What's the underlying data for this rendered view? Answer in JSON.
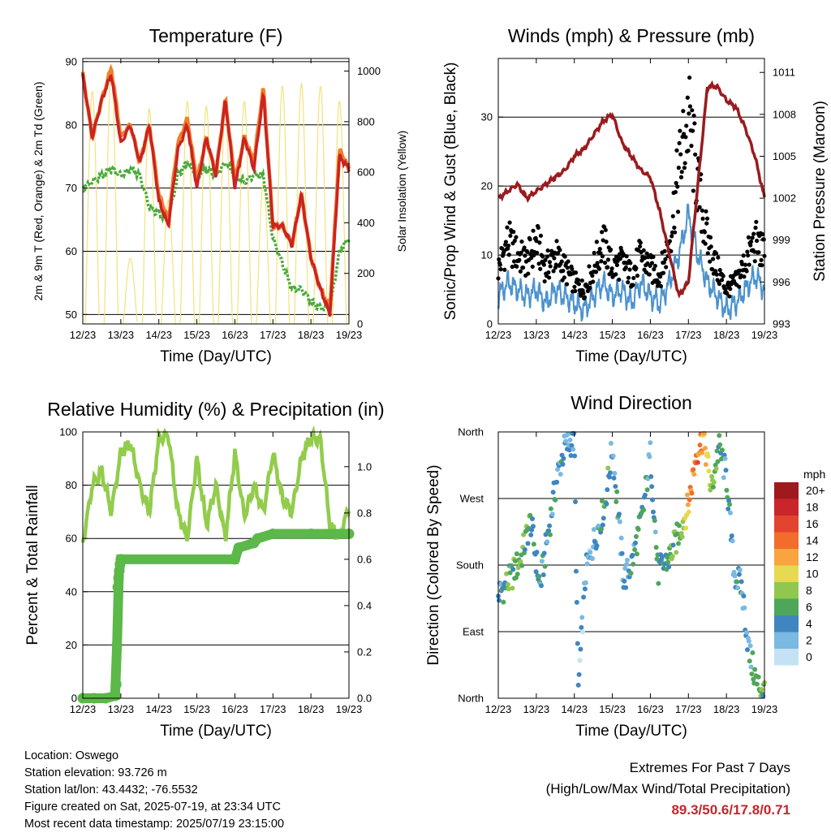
{
  "colors": {
    "temp2m": "#cc2222",
    "temp9m": "#f07f2a",
    "dewpoint": "#4aaa3c",
    "solar": "#f3e27a",
    "windSpeed": "#4b92cf",
    "gust": "#000000",
    "pressure": "#9a1b1e",
    "rh": "#92cc4c",
    "precip": "#5cb848",
    "extremes": "#c0272d"
  },
  "x_ticks": [
    "12/23",
    "13/23",
    "14/23",
    "15/23",
    "16/23",
    "17/23",
    "18/23",
    "19/23"
  ],
  "x_label": "Time (Day/UTC)",
  "speed_legend": {
    "title": "mph",
    "labels": [
      "20+",
      "18",
      "16",
      "14",
      "12",
      "10",
      "8",
      "6",
      "4",
      "2",
      "0"
    ],
    "colors": [
      "#9e1a1e",
      "#c9252b",
      "#e2452f",
      "#f26c2c",
      "#f9a43f",
      "#e5da52",
      "#8fc74f",
      "#4ea65a",
      "#3f86c0",
      "#7ab9e1",
      "#c3e3f5"
    ]
  },
  "chart_data": [
    {
      "type": "line",
      "title": "Temperature (F)",
      "xlabel": "Time (Day/UTC)",
      "ylabel": "2m & 9m T (Red, Orange) & 2m Td (Green)",
      "ylabel_right": "Solar Insolation (Yellow)",
      "ylim": [
        48.5,
        90.5
      ],
      "ylim_right": [
        0,
        1050
      ],
      "yticks": [
        50,
        60,
        70,
        80,
        90
      ],
      "yticks_right": [
        0,
        200,
        400,
        600,
        800,
        1000
      ],
      "grid": true,
      "x_days": [
        0,
        0.25,
        0.5,
        0.75,
        1,
        1.25,
        1.5,
        1.75,
        2,
        2.25,
        2.5,
        2.75,
        3,
        3.25,
        3.5,
        3.75,
        4,
        4.25,
        4.5,
        4.75,
        5,
        5.25,
        5.5,
        5.75,
        6,
        6.25,
        6.5,
        6.75,
        7
      ],
      "series": [
        {
          "name": "2m T",
          "values": [
            88,
            78,
            84,
            88,
            77,
            80,
            74,
            80,
            68,
            64,
            76,
            80,
            70,
            78,
            72,
            84,
            70,
            78,
            73,
            85,
            64,
            64,
            61,
            69,
            59,
            54,
            50,
            75,
            73
          ]
        },
        {
          "name": "9m T",
          "values": [
            88,
            78,
            84,
            89,
            78,
            80,
            74,
            80,
            69,
            65,
            77,
            81,
            71,
            78,
            72,
            84,
            71,
            78,
            74,
            86,
            64,
            64,
            61,
            69,
            59,
            54,
            51,
            76,
            73
          ]
        },
        {
          "name": "2m Td",
          "values": [
            70,
            71,
            72,
            73,
            72,
            73,
            72,
            67,
            66,
            65,
            72,
            74,
            72,
            73,
            72,
            74,
            72,
            71,
            72,
            72,
            62,
            58,
            54,
            54,
            52,
            51,
            51,
            60,
            62
          ]
        }
      ],
      "solar_days": [
        0.25,
        0.75,
        1.25,
        1.75,
        2.25,
        2.75,
        3.25,
        3.75,
        4.25,
        4.75,
        5.25,
        5.75,
        6.25,
        6.75
      ],
      "solar_peaks": [
        920,
        1000,
        260,
        850,
        490,
        880,
        860,
        850,
        880,
        560,
        940,
        950,
        940,
        880
      ]
    },
    {
      "type": "scatter",
      "title": "Winds (mph) & Pressure (mb)",
      "xlabel": "Time (Day/UTC)",
      "ylabel": "Sonic/Prop Wind & Gust (Blue, Black)",
      "ylabel_right": "Station Pressure (Maroon)",
      "ylim": [
        0,
        38.5
      ],
      "ylim_right": [
        993,
        1012
      ],
      "yticks": [
        0,
        10,
        20,
        30
      ],
      "yticks_right": [
        993,
        996,
        999,
        1002,
        1005,
        1008,
        1011
      ],
      "grid": true,
      "x_days": [
        0,
        0.25,
        0.5,
        0.75,
        1,
        1.25,
        1.5,
        1.75,
        2,
        2.25,
        2.5,
        2.75,
        3,
        3.25,
        3.5,
        3.75,
        4,
        4.25,
        4.5,
        4.75,
        5,
        5.25,
        5.5,
        5.75,
        6,
        6.25,
        6.5,
        6.75,
        7
      ],
      "series": [
        {
          "name": "Wind",
          "values": [
            4,
            6,
            5,
            4,
            5,
            3,
            5,
            4,
            3,
            2,
            4,
            6,
            4,
            5,
            3,
            6,
            4,
            3,
            6,
            10,
            16,
            10,
            6,
            4,
            2,
            3,
            5,
            7,
            5
          ]
        },
        {
          "name": "Gust",
          "values": [
            8,
            12,
            10,
            9,
            12,
            8,
            10,
            8,
            6,
            5,
            8,
            12,
            8,
            9,
            7,
            10,
            8,
            7,
            12,
            22,
            30,
            20,
            12,
            8,
            5,
            6,
            9,
            12,
            10
          ]
        },
        {
          "name": "Pressure",
          "values": [
            1002,
            1002.5,
            1003,
            1002,
            1002.5,
            1003,
            1003.5,
            1004,
            1005,
            1005.5,
            1006.5,
            1007.5,
            1008,
            1006,
            1005,
            1004,
            1003.5,
            1001,
            998,
            995,
            996,
            1003,
            1010,
            1010,
            1009,
            1008.5,
            1007,
            1005,
            1002
          ]
        }
      ]
    },
    {
      "type": "line",
      "title": "Relative Humidity (%) & Precipitation (in)",
      "xlabel": "Time (Day/UTC)",
      "ylabel": "Percent & Total Rainfall",
      "ylim": [
        0,
        100
      ],
      "ylim_right": [
        0,
        1.15
      ],
      "yticks": [
        0,
        20,
        40,
        60,
        80,
        100
      ],
      "yticks_right": [
        0.0,
        0.2,
        0.4,
        0.6,
        0.8,
        1.0
      ],
      "grid": true,
      "x_days": [
        0,
        0.25,
        0.5,
        0.75,
        1,
        1.25,
        1.5,
        1.75,
        2,
        2.25,
        2.5,
        2.75,
        3,
        3.25,
        3.5,
        3.75,
        4,
        4.25,
        4.5,
        4.75,
        5,
        5.25,
        5.5,
        5.75,
        6,
        6.25,
        6.5,
        6.75,
        7
      ],
      "series": [
        {
          "name": "RH",
          "values": [
            58,
            80,
            85,
            70,
            92,
            96,
            80,
            70,
            97,
            99,
            70,
            60,
            90,
            65,
            80,
            60,
            92,
            68,
            80,
            70,
            92,
            75,
            70,
            90,
            98,
            97,
            65,
            60,
            72
          ]
        },
        {
          "name": "Precip",
          "x_days": [
            0,
            0.3,
            0.6,
            0.85,
            0.88,
            0.9,
            0.92,
            0.94,
            0.96,
            0.98,
            1.0,
            4.0,
            4.1,
            4.5,
            4.6,
            5.0,
            6.0,
            7.0
          ],
          "values": [
            0,
            0,
            0,
            0.01,
            0.06,
            0.23,
            0.48,
            0.52,
            0.55,
            0.58,
            0.6,
            0.6,
            0.65,
            0.67,
            0.69,
            0.71,
            0.71,
            0.71
          ]
        }
      ]
    },
    {
      "type": "scatter",
      "title": "Wind Direction",
      "xlabel": "Time (Day/UTC)",
      "ylabel": "Direction (Colored By Speed)",
      "yticks": [
        "North",
        "East",
        "South",
        "West",
        "North"
      ],
      "ylim": [
        0,
        360
      ],
      "grid": true,
      "x_days": [
        0,
        0.3,
        0.6,
        0.85,
        1.1,
        1.3,
        1.55,
        1.75,
        2.0,
        2.1,
        2.3,
        2.5,
        2.8,
        3.0,
        3.3,
        3.5,
        3.8,
        4.0,
        4.2,
        4.5,
        4.8,
        5.0,
        5.2,
        5.4,
        5.6,
        5.8,
        6.0,
        6.2,
        6.4,
        6.6,
        6.8,
        7.0
      ],
      "series": [
        {
          "name": "Direction",
          "values": [
            140,
            160,
            190,
            240,
            150,
            220,
            300,
            340,
            350,
            10,
            170,
            210,
            260,
            340,
            160,
            180,
            250,
            330,
            170,
            190,
            230,
            260,
            330,
            355,
            280,
            340,
            300,
            170,
            150,
            60,
            20,
            10
          ]
        },
        {
          "name": "Speed",
          "values": [
            4,
            6,
            7,
            5,
            4,
            5,
            4,
            3,
            3,
            3,
            2,
            3,
            6,
            4,
            3,
            4,
            5,
            4,
            4,
            6,
            8,
            12,
            15,
            12,
            8,
            5,
            4,
            3,
            4,
            3,
            7,
            6
          ]
        }
      ]
    }
  ],
  "footer": {
    "location": "Location: Oswego",
    "elevation": "Station elevation: 93.726 m",
    "latlon": "Station lat/lon: 43.4432; -76.5532",
    "created": "Figure created on Sat, 2025-07-19, at 23:34 UTC",
    "recent": "Most recent data timestamp: 2025/07/19 23:15:00",
    "extremes_title": "Extremes For Past 7 Days",
    "extremes_sub": "(High/Low/Max Wind/Total Precipitation)",
    "extremes_values": "89.3/50.6/17.8/0.71"
  }
}
